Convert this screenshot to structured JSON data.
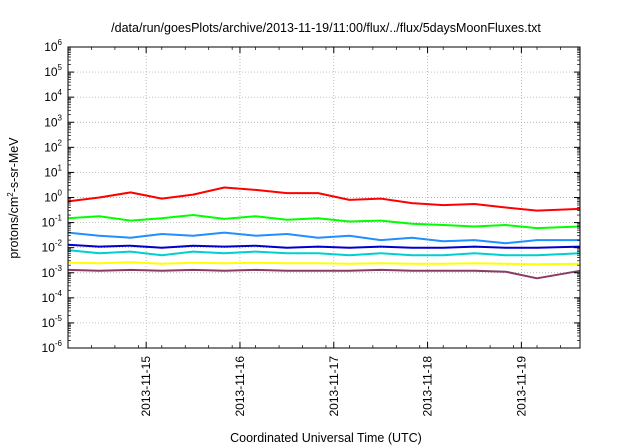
{
  "chart_data": {
    "type": "line",
    "title": "/data/run/goesPlots/archive/2013-11-19/11:00/flux/../flux/5daysMoonFluxes.txt",
    "xlabel": "Coordinated Universal Time (UTC)",
    "ylabel": {
      "base": "protons/cm",
      "exponent": "2",
      "suffix": "-s-sr-MeV"
    },
    "x_axis_scale": "time",
    "xlim": [
      "2013-11-14T04:00",
      "2013-11-19T15:00"
    ],
    "x_ticks": [
      "2013-11-15",
      "2013-11-16",
      "2013-11-17",
      "2013-11-18",
      "2013-11-19"
    ],
    "y_axis_scale": "log",
    "ylim": [
      1e-06,
      1000000.0
    ],
    "y_ticks": [
      {
        "base": "10",
        "exp": "-6",
        "value": 1e-06
      },
      {
        "base": "10",
        "exp": "-5",
        "value": 1e-05
      },
      {
        "base": "10",
        "exp": "-4",
        "value": 0.0001
      },
      {
        "base": "10",
        "exp": "-3",
        "value": 0.001
      },
      {
        "base": "10",
        "exp": "-2",
        "value": 0.01
      },
      {
        "base": "10",
        "exp": "-1",
        "value": 0.1
      },
      {
        "base": "10",
        "exp": "0",
        "value": 1
      },
      {
        "base": "10",
        "exp": "1",
        "value": 10
      },
      {
        "base": "10",
        "exp": "2",
        "value": 100
      },
      {
        "base": "10",
        "exp": "3",
        "value": 1000
      },
      {
        "base": "10",
        "exp": "4",
        "value": 10000
      },
      {
        "base": "10",
        "exp": "5",
        "value": 100000
      },
      {
        "base": "10",
        "exp": "6",
        "value": 1000000
      }
    ],
    "grid": true,
    "legend": "none",
    "series": [
      {
        "color": "#ff0000",
        "x": [
          "2013-11-14T04:00",
          "2013-11-14T12:00",
          "2013-11-14T20:00",
          "2013-11-15T04:00",
          "2013-11-15T12:00",
          "2013-11-15T20:00",
          "2013-11-16T04:00",
          "2013-11-16T12:00",
          "2013-11-16T20:00",
          "2013-11-17T04:00",
          "2013-11-17T12:00",
          "2013-11-17T20:00",
          "2013-11-18T04:00",
          "2013-11-18T12:00",
          "2013-11-18T20:00",
          "2013-11-19T04:00",
          "2013-11-19T15:00"
        ],
        "values": [
          0.7,
          1.0,
          1.6,
          0.9,
          1.3,
          2.5,
          2.0,
          1.5,
          1.5,
          0.8,
          0.9,
          0.6,
          0.5,
          0.55,
          0.4,
          0.3,
          0.35
        ]
      },
      {
        "color": "#00ff00",
        "x": [
          "2013-11-14T04:00",
          "2013-11-14T12:00",
          "2013-11-14T20:00",
          "2013-11-15T04:00",
          "2013-11-15T12:00",
          "2013-11-15T20:00",
          "2013-11-16T04:00",
          "2013-11-16T12:00",
          "2013-11-16T20:00",
          "2013-11-17T04:00",
          "2013-11-17T12:00",
          "2013-11-17T20:00",
          "2013-11-18T04:00",
          "2013-11-18T12:00",
          "2013-11-18T20:00",
          "2013-11-19T04:00",
          "2013-11-19T15:00"
        ],
        "values": [
          0.15,
          0.18,
          0.12,
          0.15,
          0.2,
          0.14,
          0.18,
          0.13,
          0.15,
          0.11,
          0.12,
          0.09,
          0.08,
          0.07,
          0.08,
          0.06,
          0.07
        ]
      },
      {
        "color": "#1e90ff",
        "x": [
          "2013-11-14T04:00",
          "2013-11-14T12:00",
          "2013-11-14T20:00",
          "2013-11-15T04:00",
          "2013-11-15T12:00",
          "2013-11-15T20:00",
          "2013-11-16T04:00",
          "2013-11-16T12:00",
          "2013-11-16T20:00",
          "2013-11-17T04:00",
          "2013-11-17T12:00",
          "2013-11-17T20:00",
          "2013-11-18T04:00",
          "2013-11-18T12:00",
          "2013-11-18T20:00",
          "2013-11-19T04:00",
          "2013-11-19T15:00"
        ],
        "values": [
          0.04,
          0.03,
          0.025,
          0.035,
          0.03,
          0.04,
          0.03,
          0.035,
          0.025,
          0.03,
          0.02,
          0.025,
          0.018,
          0.02,
          0.015,
          0.02,
          0.02
        ]
      },
      {
        "color": "#00ced1",
        "x": [
          "2013-11-14T04:00",
          "2013-11-14T12:00",
          "2013-11-14T20:00",
          "2013-11-15T04:00",
          "2013-11-15T12:00",
          "2013-11-15T20:00",
          "2013-11-16T04:00",
          "2013-11-16T12:00",
          "2013-11-16T20:00",
          "2013-11-17T04:00",
          "2013-11-17T12:00",
          "2013-11-17T20:00",
          "2013-11-18T04:00",
          "2013-11-18T12:00",
          "2013-11-18T20:00",
          "2013-11-19T04:00",
          "2013-11-19T15:00"
        ],
        "values": [
          0.008,
          0.006,
          0.007,
          0.005,
          0.007,
          0.006,
          0.007,
          0.006,
          0.006,
          0.005,
          0.006,
          0.005,
          0.005,
          0.006,
          0.005,
          0.005,
          0.006
        ]
      },
      {
        "color": "#0000cd",
        "x": [
          "2013-11-14T04:00",
          "2013-11-14T12:00",
          "2013-11-14T20:00",
          "2013-11-15T04:00",
          "2013-11-15T12:00",
          "2013-11-15T20:00",
          "2013-11-16T04:00",
          "2013-11-16T12:00",
          "2013-11-16T20:00",
          "2013-11-17T04:00",
          "2013-11-17T12:00",
          "2013-11-17T20:00",
          "2013-11-18T04:00",
          "2013-11-18T12:00",
          "2013-11-18T20:00",
          "2013-11-19T04:00",
          "2013-11-19T15:00"
        ],
        "values": [
          0.013,
          0.011,
          0.012,
          0.01,
          0.012,
          0.011,
          0.012,
          0.01,
          0.011,
          0.01,
          0.011,
          0.01,
          0.01,
          0.011,
          0.01,
          0.01,
          0.011
        ]
      },
      {
        "color": "#ffff00",
        "x": [
          "2013-11-14T04:00",
          "2013-11-14T12:00",
          "2013-11-14T20:00",
          "2013-11-15T04:00",
          "2013-11-15T12:00",
          "2013-11-15T20:00",
          "2013-11-16T04:00",
          "2013-11-16T12:00",
          "2013-11-16T20:00",
          "2013-11-17T04:00",
          "2013-11-17T12:00",
          "2013-11-17T20:00",
          "2013-11-18T04:00",
          "2013-11-18T12:00",
          "2013-11-18T20:00",
          "2013-11-19T04:00",
          "2013-11-19T15:00"
        ],
        "values": [
          0.0025,
          0.0024,
          0.0026,
          0.0023,
          0.0025,
          0.0024,
          0.0025,
          0.0024,
          0.0024,
          0.0023,
          0.0024,
          0.0023,
          0.0023,
          0.0024,
          0.0023,
          0.0022,
          0.0023
        ]
      },
      {
        "color": "#8b3a62",
        "x": [
          "2013-11-14T04:00",
          "2013-11-14T12:00",
          "2013-11-14T20:00",
          "2013-11-15T04:00",
          "2013-11-15T12:00",
          "2013-11-15T20:00",
          "2013-11-16T04:00",
          "2013-11-16T12:00",
          "2013-11-16T20:00",
          "2013-11-17T04:00",
          "2013-11-17T12:00",
          "2013-11-17T20:00",
          "2013-11-18T04:00",
          "2013-11-18T12:00",
          "2013-11-18T20:00",
          "2013-11-19T04:00",
          "2013-11-19T15:00"
        ],
        "values": [
          0.0013,
          0.0012,
          0.0013,
          0.0012,
          0.0013,
          0.0012,
          0.0013,
          0.0012,
          0.0012,
          0.0012,
          0.0013,
          0.0012,
          0.0012,
          0.0012,
          0.0011,
          0.0006,
          0.0012
        ]
      }
    ]
  }
}
